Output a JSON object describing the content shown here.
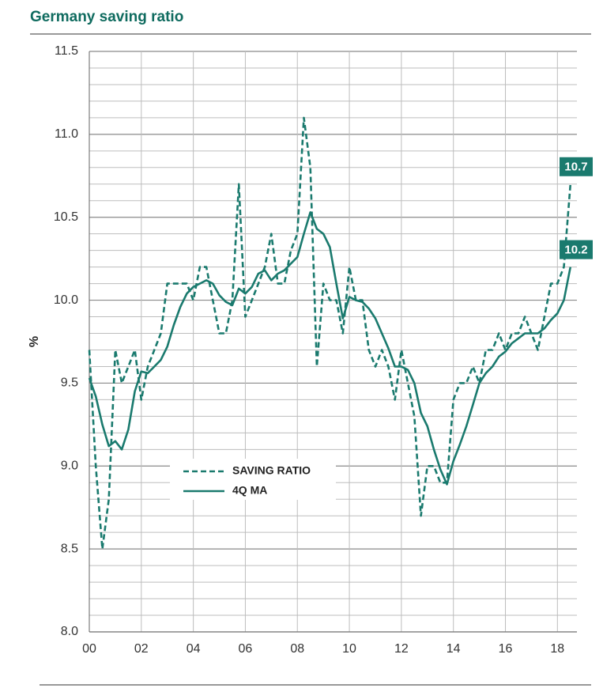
{
  "chart_data": {
    "type": "line",
    "title": "Germany   saving ratio",
    "ylabel": "%",
    "x": [
      2000.0,
      2000.25,
      2000.5,
      2000.75,
      2001.0,
      2001.25,
      2001.5,
      2001.75,
      2002.0,
      2002.25,
      2002.5,
      2002.75,
      2003.0,
      2003.25,
      2003.5,
      2003.75,
      2004.0,
      2004.25,
      2004.5,
      2004.75,
      2005.0,
      2005.25,
      2005.5,
      2005.75,
      2006.0,
      2006.25,
      2006.5,
      2006.75,
      2007.0,
      2007.25,
      2007.5,
      2007.75,
      2008.0,
      2008.25,
      2008.5,
      2008.75,
      2009.0,
      2009.25,
      2009.5,
      2009.75,
      2010.0,
      2010.25,
      2010.5,
      2010.75,
      2011.0,
      2011.25,
      2011.5,
      2011.75,
      2012.0,
      2012.25,
      2012.5,
      2012.75,
      2013.0,
      2013.25,
      2013.5,
      2013.75,
      2014.0,
      2014.25,
      2014.5,
      2014.75,
      2015.0,
      2015.25,
      2015.5,
      2015.75,
      2016.0,
      2016.25,
      2016.5,
      2016.75,
      2017.0,
      2017.25,
      2017.5,
      2017.75,
      2018.0,
      2018.25,
      2018.5
    ],
    "series": [
      {
        "name": "SAVING RATIO",
        "color": "#1a7a6e",
        "dashed": true,
        "end_label": "10.7",
        "values": [
          9.7,
          9.0,
          8.5,
          8.8,
          9.7,
          9.5,
          9.6,
          9.7,
          9.4,
          9.6,
          9.7,
          9.8,
          10.1,
          10.1,
          10.1,
          10.1,
          10.0,
          10.2,
          10.2,
          10.0,
          9.8,
          9.8,
          10.0,
          10.7,
          9.9,
          10.0,
          10.1,
          10.2,
          10.4,
          10.1,
          10.1,
          10.3,
          10.4,
          11.1,
          10.8,
          9.6,
          10.1,
          10.0,
          10.0,
          9.8,
          10.2,
          10.0,
          10.0,
          9.7,
          9.6,
          9.7,
          9.6,
          9.4,
          9.7,
          9.5,
          9.3,
          8.7,
          9.0,
          9.0,
          8.9,
          8.9,
          9.4,
          9.5,
          9.5,
          9.6,
          9.5,
          9.7,
          9.7,
          9.8,
          9.7,
          9.8,
          9.8,
          9.9,
          9.8,
          9.7,
          9.9,
          10.1,
          10.1,
          10.2,
          10.7
        ]
      },
      {
        "name": "4Q MA",
        "color": "#1a7a6e",
        "dashed": false,
        "end_label": "10.2",
        "values": [
          9.53,
          9.42,
          9.25,
          9.12,
          9.15,
          9.1,
          9.22,
          9.45,
          9.57,
          9.56,
          9.6,
          9.64,
          9.72,
          9.85,
          9.96,
          10.04,
          10.08,
          10.1,
          10.12,
          10.1,
          10.03,
          9.99,
          9.97,
          10.07,
          10.04,
          10.08,
          10.16,
          10.18,
          10.12,
          10.16,
          10.18,
          10.22,
          10.26,
          10.4,
          10.53,
          10.43,
          10.4,
          10.32,
          10.1,
          9.89,
          10.02,
          10.0,
          9.99,
          9.95,
          9.89,
          9.8,
          9.71,
          9.6,
          9.6,
          9.58,
          9.5,
          9.32,
          9.24,
          9.1,
          8.98,
          8.89,
          9.03,
          9.13,
          9.24,
          9.37,
          9.5,
          9.56,
          9.6,
          9.66,
          9.69,
          9.74,
          9.77,
          9.8,
          9.8,
          9.8,
          9.83,
          9.88,
          9.92,
          10.0,
          10.2
        ]
      }
    ],
    "xlim": [
      2000,
      2018.75
    ],
    "xticks": [
      {
        "value": 2000,
        "label": "00"
      },
      {
        "value": 2002,
        "label": "02"
      },
      {
        "value": 2004,
        "label": "04"
      },
      {
        "value": 2006,
        "label": "06"
      },
      {
        "value": 2008,
        "label": "08"
      },
      {
        "value": 2010,
        "label": "10"
      },
      {
        "value": 2012,
        "label": "12"
      },
      {
        "value": 2014,
        "label": "14"
      },
      {
        "value": 2016,
        "label": "16"
      },
      {
        "value": 2018,
        "label": "18"
      }
    ],
    "ylim": [
      8,
      11.5
    ],
    "yticks": [
      {
        "value": 8,
        "label": "8.0"
      },
      8.5,
      {
        "value": 9,
        "label": "9.0"
      },
      9.5,
      {
        "value": 10,
        "label": "10.0"
      },
      10.5,
      {
        "value": 11,
        "label": "11.0"
      },
      11.5
    ],
    "y_minor_ticks": [
      8.1,
      8.2,
      8.3,
      8.4,
      8.6,
      8.7,
      8.8,
      8.9,
      9.1,
      9.2,
      9.3,
      9.4,
      9.6,
      9.7,
      9.8,
      9.9,
      10.1,
      10.2,
      10.3,
      10.4,
      10.6,
      10.7,
      10.8,
      10.9,
      11.1,
      11.2,
      11.3,
      11.4
    ],
    "grid": true
  }
}
